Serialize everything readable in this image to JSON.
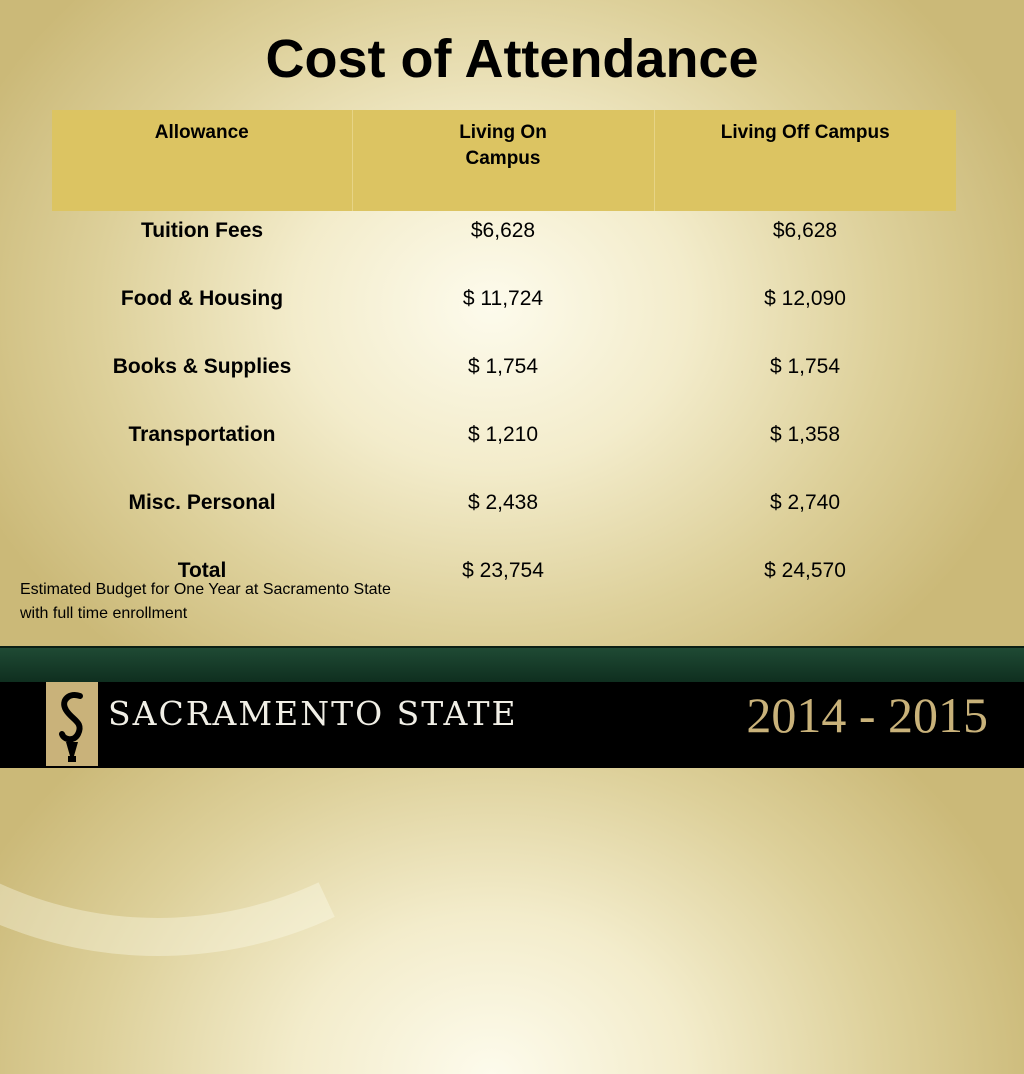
{
  "title": "Cost of Attendance",
  "table": {
    "headers": [
      "Allowance",
      "Living On Campus",
      "Living Off Campus"
    ],
    "rows": [
      [
        "Tuition Fees",
        "$6,628",
        "$6,628"
      ],
      [
        "Food & Housing",
        "$ 11,724",
        "$ 12,090"
      ],
      [
        "Books & Supplies",
        "$ 1,754",
        "$ 1,754"
      ],
      [
        "Transportation",
        "$ 1,210",
        "$ 1,358"
      ],
      [
        "Misc. Personal",
        "$ 2,438",
        "$ 2,740"
      ],
      [
        "Total",
        "$ 23,754",
        "$ 24,570"
      ]
    ]
  },
  "note": {
    "line1": "Estimated Budget for One Year at Sacramento State",
    "line2": "with full time enrollment"
  },
  "footer": {
    "brand": "SACRAMENTO STATE",
    "years": "2014 - 2015"
  },
  "colors": {
    "header_gold": "#dcc462",
    "footer_green": "#1f4a34",
    "years_gold": "#c9b27a"
  },
  "icons": {
    "logo": "torch-s-logo"
  }
}
